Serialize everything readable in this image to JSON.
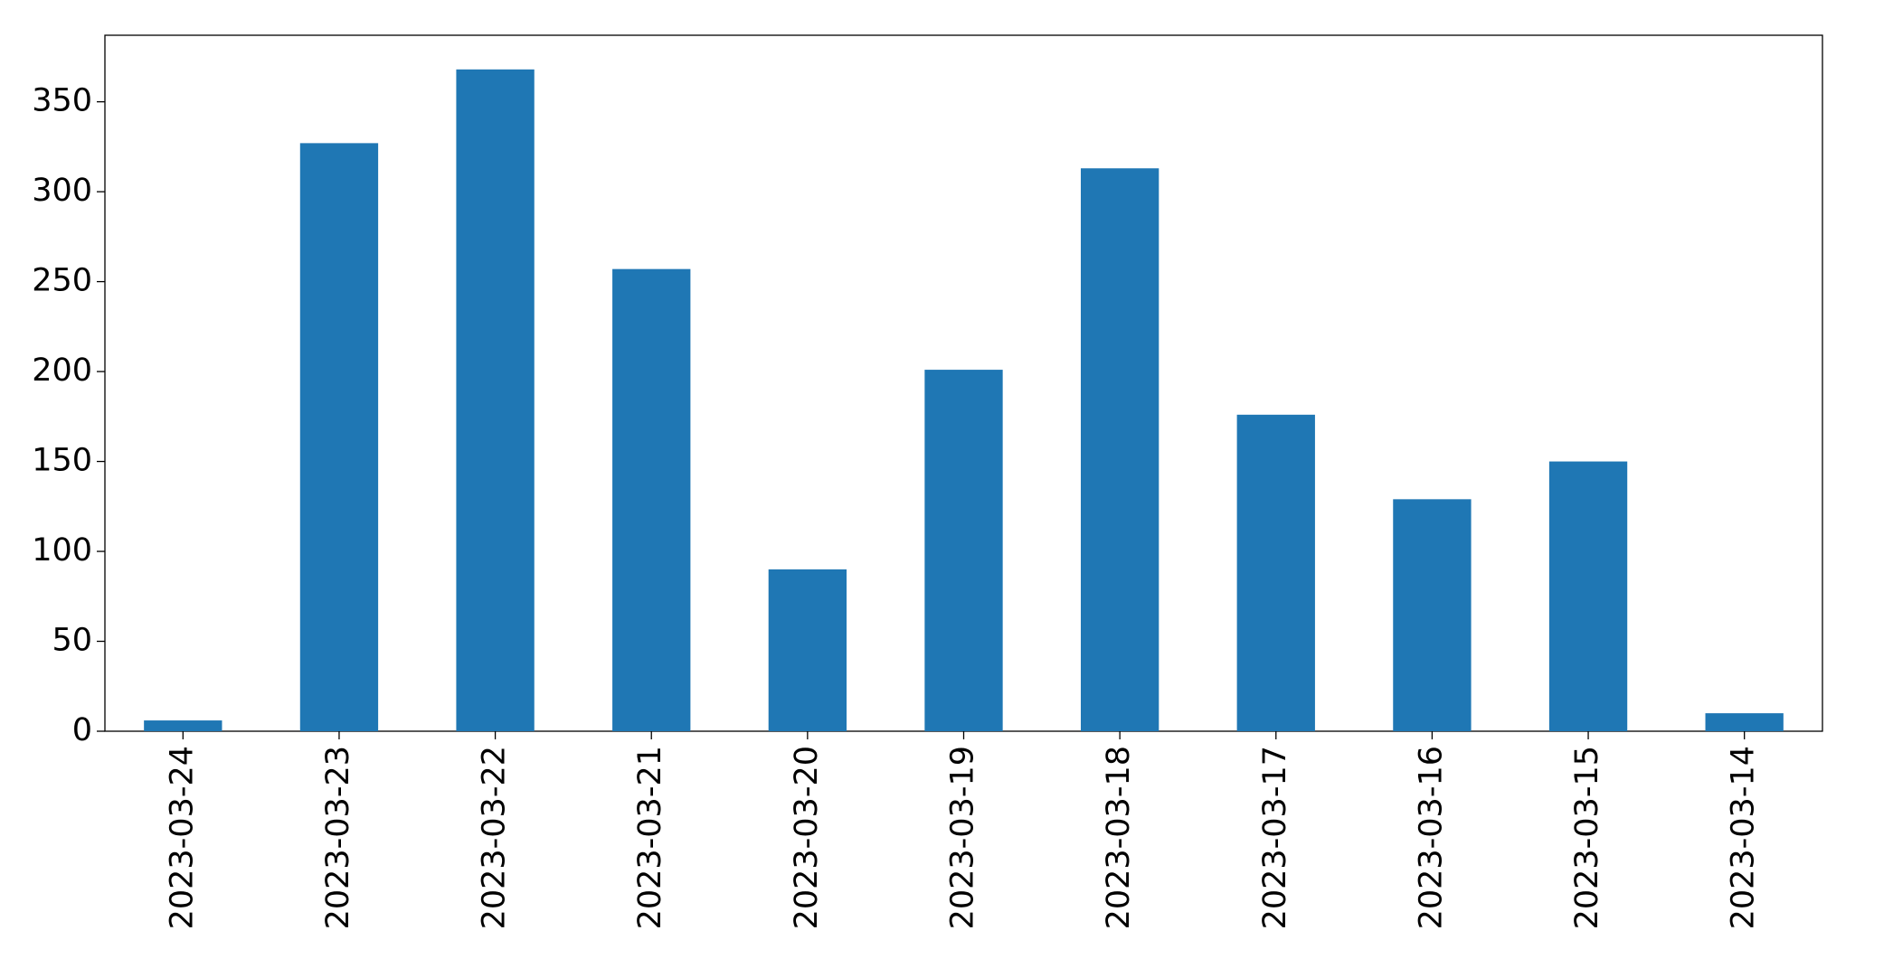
{
  "chart_data": {
    "type": "bar",
    "categories": [
      "2023-03-24",
      "2023-03-23",
      "2023-03-22",
      "2023-03-21",
      "2023-03-20",
      "2023-03-19",
      "2023-03-18",
      "2023-03-17",
      "2023-03-16",
      "2023-03-15",
      "2023-03-14"
    ],
    "values": [
      6,
      327,
      368,
      257,
      90,
      201,
      313,
      176,
      129,
      150,
      10
    ],
    "color": "#1f77b4",
    "ylim": [
      0,
      387
    ],
    "yticks": [
      0,
      50,
      100,
      150,
      200,
      250,
      300,
      350
    ],
    "grid": false
  }
}
